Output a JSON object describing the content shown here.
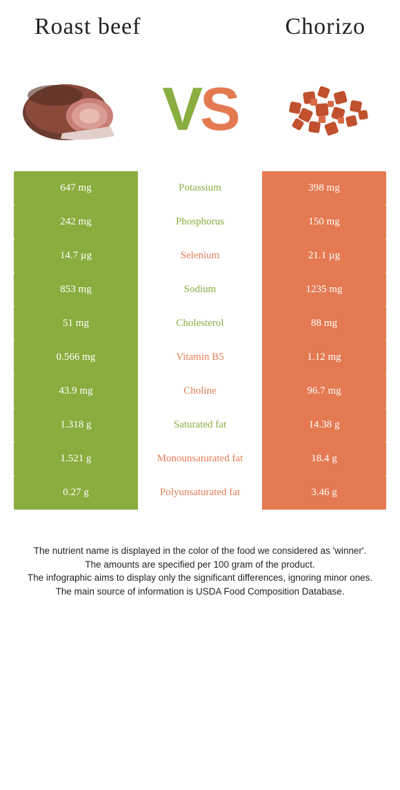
{
  "header": {
    "left_title": "Roast beef",
    "right_title": "Chorizo",
    "vs_v": "V",
    "vs_s": "S"
  },
  "colors": {
    "left": "#8aad3f",
    "right": "#e47a52",
    "bg": "#ffffff"
  },
  "rows": [
    {
      "label": "Potassium",
      "left": "647 mg",
      "right": "398 mg",
      "winner": "left"
    },
    {
      "label": "Phosphorus",
      "left": "242 mg",
      "right": "150 mg",
      "winner": "left"
    },
    {
      "label": "Selenium",
      "left": "14.7 µg",
      "right": "21.1 µg",
      "winner": "right"
    },
    {
      "label": "Sodium",
      "left": "853 mg",
      "right": "1235 mg",
      "winner": "left"
    },
    {
      "label": "Cholesterol",
      "left": "51 mg",
      "right": "88 mg",
      "winner": "left"
    },
    {
      "label": "Vitamin B5",
      "left": "0.566 mg",
      "right": "1.12 mg",
      "winner": "right"
    },
    {
      "label": "Choline",
      "left": "43.9 mg",
      "right": "96.7 mg",
      "winner": "right"
    },
    {
      "label": "Saturated fat",
      "left": "1.318 g",
      "right": "14.38 g",
      "winner": "left"
    },
    {
      "label": "Monounsaturated fat",
      "left": "1.521 g",
      "right": "18.4 g",
      "winner": "right"
    },
    {
      "label": "Polyunsaturated fat",
      "left": "0.27 g",
      "right": "3.46 g",
      "winner": "right"
    }
  ],
  "footer": {
    "l1": "The nutrient name is displayed in the color of the food we considered as 'winner'.",
    "l2": "The amounts are specified per 100 gram of the product.",
    "l3": "The infographic aims to display only the significant differences, ignoring minor ones.",
    "l4": "The main source of information is USDA Food Composition Database."
  }
}
